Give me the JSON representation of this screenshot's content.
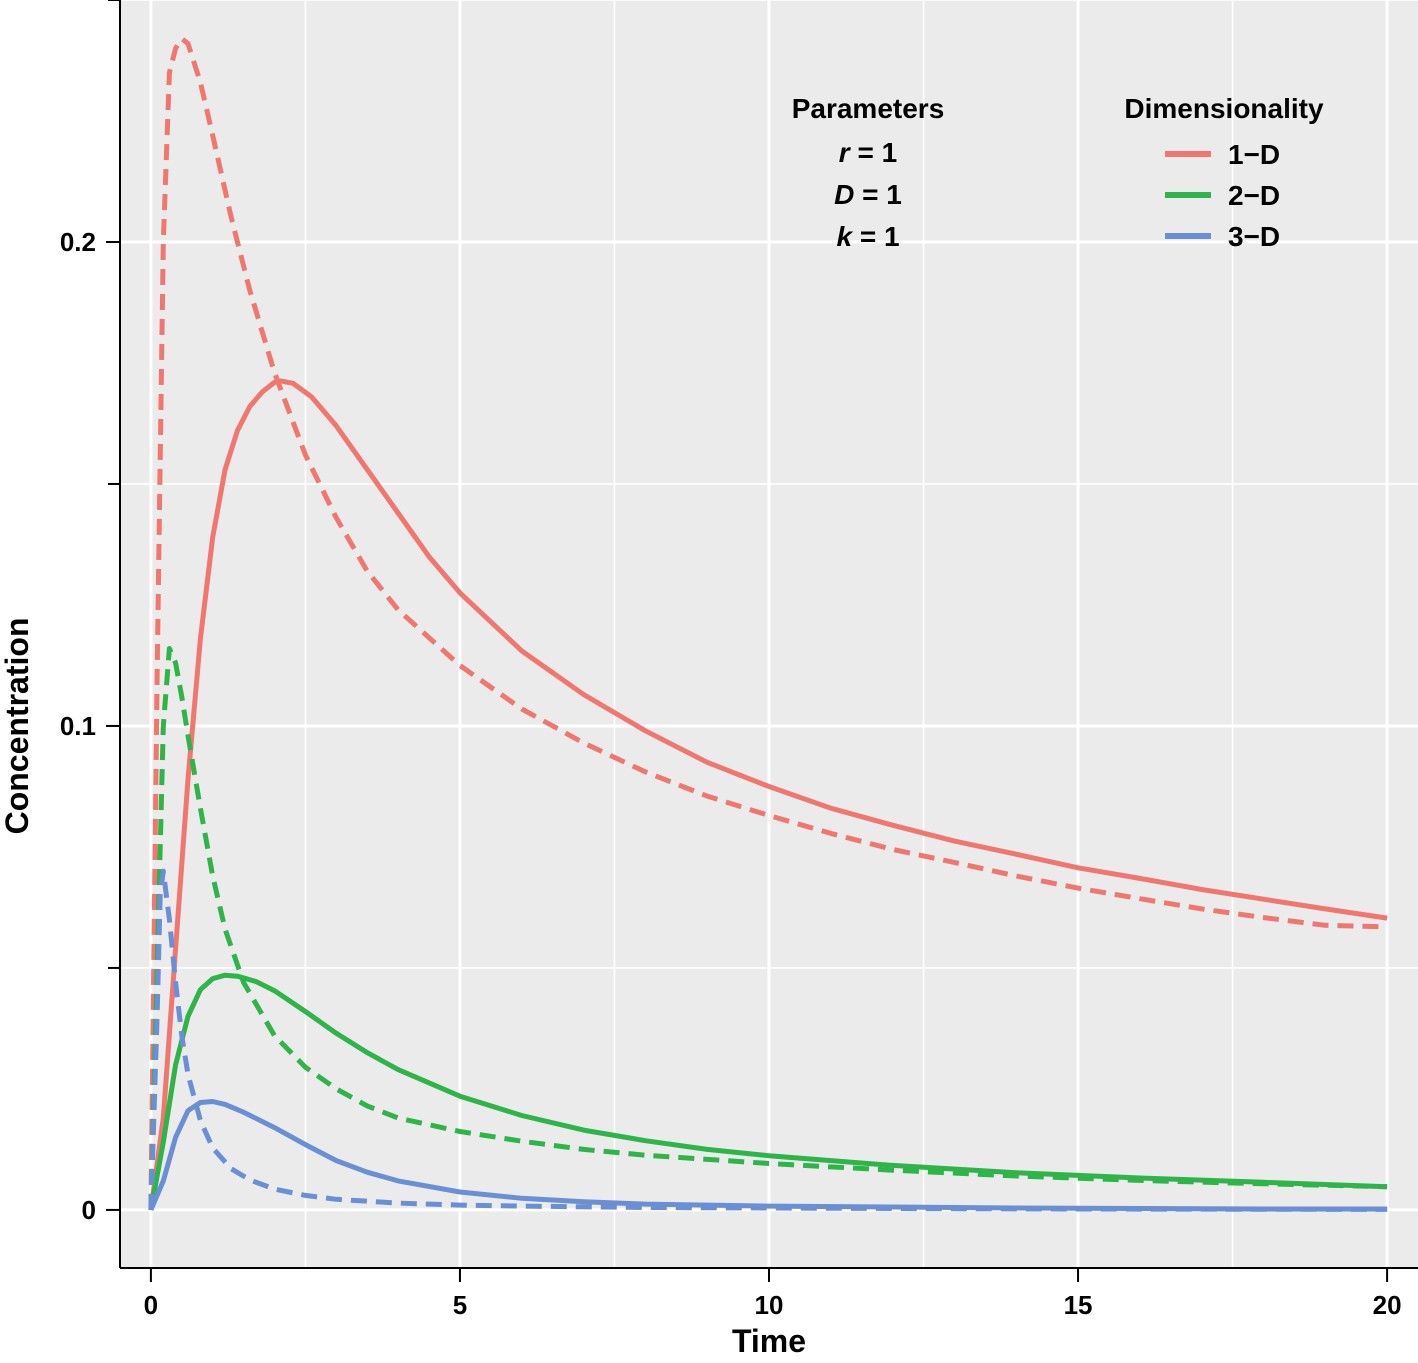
{
  "chart_data": {
    "type": "line",
    "title": "",
    "xlabel": "Time",
    "ylabel": "Concentration",
    "xlim": [
      -0.5,
      20.5
    ],
    "ylim": [
      -0.012,
      0.25
    ],
    "x_ticks": [
      0,
      5,
      10,
      15,
      20
    ],
    "x_tick_labels": [
      "0",
      "5",
      "10",
      "15",
      "20"
    ],
    "y_ticks": [
      0,
      0.1,
      0.2
    ],
    "y_tick_labels": [
      "0",
      "0.1",
      "0.2"
    ],
    "y_minor_ticks": [
      0.05,
      0.15,
      0.25
    ],
    "grid": true,
    "panel_background": "#EBEBEB",
    "legend": {
      "title": "Dimensionality",
      "placement": "top-right",
      "entries": [
        {
          "label": "1−D",
          "color": "#F0766F"
        },
        {
          "label": "2−D",
          "color": "#2DB54A"
        },
        {
          "label": "3−D",
          "color": "#6B8FD4"
        }
      ]
    },
    "parameters": {
      "title": "Parameters",
      "items": [
        {
          "name": "r",
          "eq": " = 1"
        },
        {
          "name": "D",
          "eq": " = 1"
        },
        {
          "name": "k",
          "eq": " = 1"
        }
      ]
    },
    "series": [
      {
        "group": "1-D",
        "style": "solid",
        "color": "#F0766F",
        "x": [
          0,
          0.2,
          0.4,
          0.6,
          0.8,
          1.0,
          1.2,
          1.4,
          1.6,
          1.8,
          2.0,
          2.1,
          2.3,
          2.6,
          3.0,
          3.5,
          4.0,
          4.5,
          5.0,
          6.0,
          7.0,
          8.0,
          9.0,
          10.0,
          11.0,
          12.0,
          13.0,
          14.0,
          15.0,
          16.0,
          17.0,
          18.0,
          19.0,
          20.0
        ],
        "y": [
          0,
          0.019,
          0.054,
          0.089,
          0.118,
          0.139,
          0.153,
          0.161,
          0.166,
          0.169,
          0.171,
          0.1713,
          0.1708,
          0.168,
          0.162,
          0.153,
          0.144,
          0.135,
          0.1275,
          0.1155,
          0.1065,
          0.099,
          0.0925,
          0.0875,
          0.083,
          0.0795,
          0.0762,
          0.0735,
          0.0707,
          0.0685,
          0.0662,
          0.0642,
          0.0622,
          0.0603
        ]
      },
      {
        "group": "1-D",
        "style": "dashed",
        "color": "#F0766F",
        "x": [
          0,
          0.1,
          0.2,
          0.3,
          0.4,
          0.5,
          0.6,
          0.8,
          1.0,
          1.3,
          1.6,
          2.0,
          2.5,
          3.0,
          3.5,
          4.0,
          5.0,
          6.0,
          7.0,
          8.0,
          9.0,
          10.0,
          11.0,
          12.0,
          13.0,
          14.0,
          15.0,
          16.0,
          17.0,
          18.0,
          19.0,
          20.0
        ],
        "y": [
          0,
          0.11,
          0.2,
          0.235,
          0.24,
          0.242,
          0.241,
          0.233,
          0.222,
          0.205,
          0.19,
          0.173,
          0.156,
          0.143,
          0.132,
          0.124,
          0.1125,
          0.1035,
          0.0965,
          0.0905,
          0.0855,
          0.0815,
          0.0778,
          0.0745,
          0.0718,
          0.069,
          0.0665,
          0.0643,
          0.0622,
          0.0604,
          0.0588,
          0.0585
        ]
      },
      {
        "group": "2-D",
        "style": "solid",
        "color": "#2DB54A",
        "x": [
          0,
          0.2,
          0.4,
          0.6,
          0.8,
          1.0,
          1.2,
          1.4,
          1.7,
          2.0,
          2.5,
          3.0,
          3.5,
          4.0,
          5.0,
          6.0,
          7.0,
          8.0,
          9.0,
          10.0,
          12.0,
          14.0,
          16.0,
          18.0,
          20.0
        ],
        "y": [
          0,
          0.014,
          0.03,
          0.04,
          0.0455,
          0.0478,
          0.0485,
          0.0483,
          0.0472,
          0.0453,
          0.041,
          0.0365,
          0.0325,
          0.029,
          0.0235,
          0.0195,
          0.0165,
          0.0143,
          0.0125,
          0.0112,
          0.0092,
          0.0077,
          0.0066,
          0.0057,
          0.0048
        ]
      },
      {
        "group": "2-D",
        "style": "dashed",
        "color": "#2DB54A",
        "x": [
          0,
          0.1,
          0.2,
          0.3,
          0.4,
          0.5,
          0.6,
          0.8,
          1.0,
          1.2,
          1.5,
          2.0,
          2.5,
          3.0,
          3.5,
          4.0,
          5.0,
          6.0,
          7.0,
          8.0,
          10.0,
          12.0,
          14.0,
          16.0,
          18.0,
          20.0
        ],
        "y": [
          0,
          0.05,
          0.1,
          0.116,
          0.113,
          0.106,
          0.098,
          0.083,
          0.069,
          0.058,
          0.047,
          0.036,
          0.0295,
          0.025,
          0.0215,
          0.019,
          0.0162,
          0.0142,
          0.0125,
          0.0113,
          0.0096,
          0.0082,
          0.007,
          0.0061,
          0.0054,
          0.0048
        ]
      },
      {
        "group": "3-D",
        "style": "solid",
        "color": "#6B8FD4",
        "x": [
          0,
          0.2,
          0.4,
          0.6,
          0.8,
          1.0,
          1.2,
          1.5,
          2.0,
          2.5,
          3.0,
          3.5,
          4.0,
          5.0,
          6.0,
          7.0,
          8.0,
          10.0,
          12.0,
          14.0,
          16.0,
          18.0,
          20.0
        ],
        "y": [
          0,
          0.006,
          0.015,
          0.0205,
          0.0222,
          0.0224,
          0.0218,
          0.0202,
          0.017,
          0.0135,
          0.0102,
          0.0078,
          0.006,
          0.0037,
          0.0024,
          0.0017,
          0.0012,
          0.0008,
          0.0006,
          0.0004,
          0.0003,
          0.0002,
          0.0002
        ]
      },
      {
        "group": "3-D",
        "style": "dashed",
        "color": "#6B8FD4",
        "x": [
          0,
          0.1,
          0.15,
          0.2,
          0.3,
          0.4,
          0.5,
          0.6,
          0.8,
          1.0,
          1.3,
          1.6,
          2.0,
          2.5,
          3.0,
          4.0,
          5.0,
          6.0,
          8.0,
          10.0,
          12.0,
          15.0,
          20.0
        ],
        "y": [
          0,
          0.04,
          0.065,
          0.07,
          0.06,
          0.047,
          0.036,
          0.028,
          0.0185,
          0.0128,
          0.0085,
          0.0062,
          0.0043,
          0.003,
          0.0022,
          0.0014,
          0.001,
          0.0008,
          0.0005,
          0.0004,
          0.0003,
          0.0002,
          0.0001
        ]
      }
    ]
  }
}
